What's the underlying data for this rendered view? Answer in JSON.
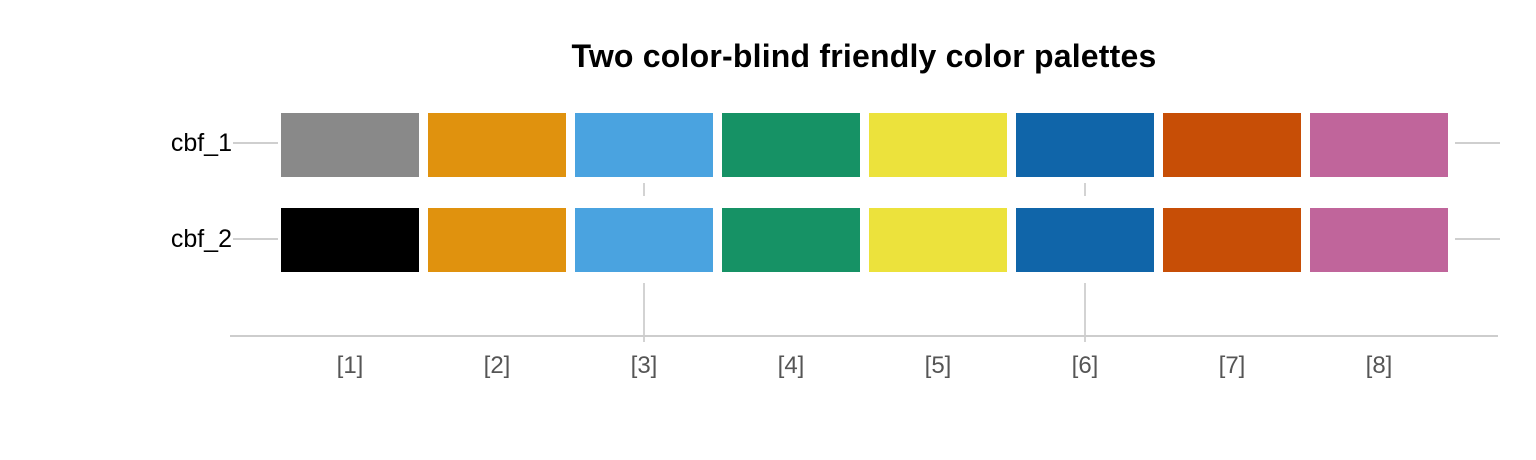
{
  "title": "Two color-blind friendly color palettes",
  "chart_data": {
    "type": "heatmap",
    "title": "Two color-blind friendly color palettes",
    "categories": [
      "[1]",
      "[2]",
      "[3]",
      "[4]",
      "[5]",
      "[6]",
      "[7]",
      "[8]"
    ],
    "rows": [
      {
        "label": "cbf_1",
        "colors": [
          "#898989",
          "#E0920E",
          "#4AA3E0",
          "#169265",
          "#ECE23C",
          "#1065A9",
          "#C74E06",
          "#C0659B"
        ]
      },
      {
        "label": "cbf_2",
        "colors": [
          "#000000",
          "#E0920E",
          "#4AA3E0",
          "#169265",
          "#ECE23C",
          "#1065A9",
          "#C74E06",
          "#C0659B"
        ]
      }
    ],
    "xlabel": "",
    "ylabel": "",
    "legend": "none",
    "grid": {
      "visible_x_gridlines_at": [
        "[3]",
        "[6]"
      ],
      "y_tick_segments": "both-sides"
    },
    "colors": {
      "background": "#FFFFFF",
      "axis_line": "#CDCDCD",
      "gridline": "#D3D3D3",
      "x_tick_label": "#555555",
      "row_label": "#000000",
      "title": "#000000"
    }
  }
}
